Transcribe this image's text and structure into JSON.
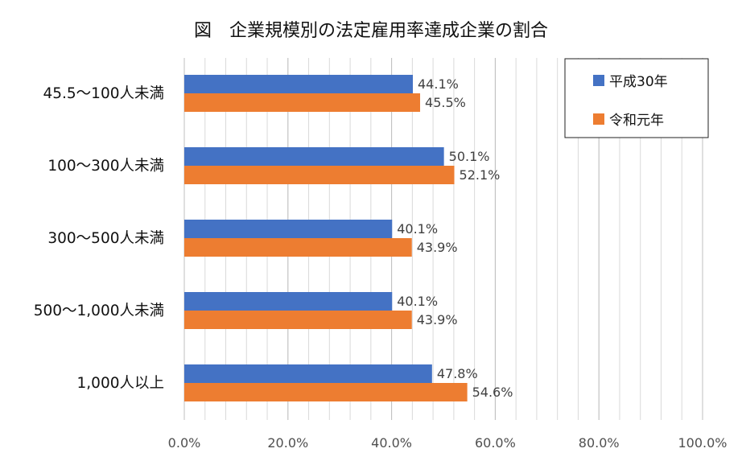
{
  "chart_data": {
    "type": "bar",
    "orientation": "horizontal",
    "title": "図　企業規模別の法定雇用率達成企業の割合",
    "categories": [
      "45.5～100人未満",
      "100～300人未満",
      "300～500人未満",
      "500～1,000人未満",
      "1,000人以上"
    ],
    "series": [
      {
        "name": "平成30年",
        "color": "#4472C4",
        "values": [
          44.1,
          50.1,
          40.1,
          40.1,
          47.8
        ]
      },
      {
        "name": "令和元年",
        "color": "#ED7D31",
        "values": [
          45.5,
          52.1,
          43.9,
          43.9,
          54.6
        ]
      }
    ],
    "data_labels": [
      [
        "44.1%",
        "50.1%",
        "40.1%",
        "40.1%",
        "47.8%"
      ],
      [
        "45.5%",
        "52.1%",
        "43.9%",
        "43.9%",
        "54.6%"
      ]
    ],
    "xticks": [
      0,
      20,
      40,
      60,
      80,
      100
    ],
    "xtick_labels": [
      "0.0%",
      "20.0%",
      "40.0%",
      "60.0%",
      "80.0%",
      "100.0%"
    ],
    "xlim": [
      0,
      100
    ],
    "xlabel": "",
    "ylabel": "",
    "grid": true,
    "legend_position": "top-right"
  }
}
